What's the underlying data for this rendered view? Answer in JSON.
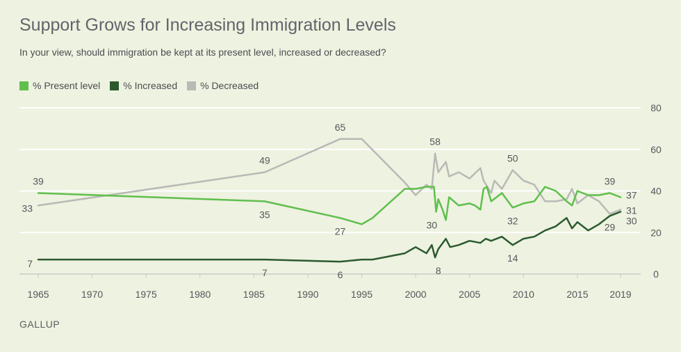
{
  "header": {
    "title": "Support Grows for Increasing Immigration Levels",
    "subtitle": "In your view, should immigration be kept at its present level, increased or decreased?"
  },
  "source": "GALLUP",
  "colors": {
    "background": "#eef2e0",
    "present": "#5fbf4d",
    "increased": "#2b5a2f",
    "decreased": "#b9b9b6",
    "grid": "#ffffff"
  },
  "chart_data": {
    "type": "line",
    "title": "Support Grows for Increasing Immigration Levels",
    "subtitle": "In your view, should immigration be kept at its present level, increased or decreased?",
    "xlabel": "",
    "ylabel": "",
    "xlim": [
      1965,
      2019
    ],
    "ylim": [
      0,
      80
    ],
    "x_ticks": [
      1965,
      1970,
      1975,
      1980,
      1985,
      1990,
      1995,
      2000,
      2005,
      2010,
      2015,
      2019
    ],
    "y_ticks": [
      0,
      20,
      40,
      60,
      80
    ],
    "grid": true,
    "legend_position": "top-left",
    "series": [
      {
        "name": "% Present level",
        "color": "#5fbf4d",
        "points": [
          [
            1965,
            39
          ],
          [
            1986,
            35
          ],
          [
            1993,
            27
          ],
          [
            1995,
            24
          ],
          [
            1996,
            27
          ],
          [
            1999,
            41
          ],
          [
            2000,
            41
          ],
          [
            2001,
            42
          ],
          [
            2001.7,
            42
          ],
          [
            2001.9,
            30
          ],
          [
            2002.1,
            36
          ],
          [
            2002.5,
            31
          ],
          [
            2002.8,
            26
          ],
          [
            2003.1,
            37
          ],
          [
            2004,
            33
          ],
          [
            2005,
            34
          ],
          [
            2005.5,
            33
          ],
          [
            2006,
            31
          ],
          [
            2006.3,
            41
          ],
          [
            2006.6,
            42
          ],
          [
            2007,
            35
          ],
          [
            2008,
            39
          ],
          [
            2009,
            32
          ],
          [
            2010,
            34
          ],
          [
            2011,
            35
          ],
          [
            2012,
            42
          ],
          [
            2013,
            40
          ],
          [
            2014,
            35
          ],
          [
            2014.5,
            33
          ],
          [
            2015,
            40
          ],
          [
            2016,
            38
          ],
          [
            2017,
            38
          ],
          [
            2018,
            39
          ],
          [
            2019,
            37
          ]
        ]
      },
      {
        "name": "% Increased",
        "color": "#2b5a2f",
        "points": [
          [
            1965,
            7
          ],
          [
            1986,
            7
          ],
          [
            1993,
            6
          ],
          [
            1995,
            7
          ],
          [
            1996,
            7
          ],
          [
            1999,
            10
          ],
          [
            2000,
            13
          ],
          [
            2001,
            10
          ],
          [
            2001.5,
            14
          ],
          [
            2001.8,
            8
          ],
          [
            2002.1,
            12
          ],
          [
            2002.8,
            17
          ],
          [
            2003.2,
            13
          ],
          [
            2004,
            14
          ],
          [
            2005,
            16
          ],
          [
            2006,
            15
          ],
          [
            2006.5,
            17
          ],
          [
            2007,
            16
          ],
          [
            2008,
            18
          ],
          [
            2009,
            14
          ],
          [
            2010,
            17
          ],
          [
            2011,
            18
          ],
          [
            2012,
            21
          ],
          [
            2013,
            23
          ],
          [
            2014,
            27
          ],
          [
            2014.5,
            22
          ],
          [
            2015,
            25
          ],
          [
            2016,
            21
          ],
          [
            2017,
            24
          ],
          [
            2018,
            28
          ],
          [
            2019,
            30
          ]
        ]
      },
      {
        "name": "% Decreased",
        "color": "#b9b9b6",
        "points": [
          [
            1965,
            33
          ],
          [
            1986,
            49
          ],
          [
            1993,
            65
          ],
          [
            1995,
            65
          ],
          [
            1999,
            44
          ],
          [
            2000,
            38
          ],
          [
            2001,
            43
          ],
          [
            2001.5,
            41
          ],
          [
            2001.8,
            58
          ],
          [
            2002.1,
            49
          ],
          [
            2002.8,
            54
          ],
          [
            2003.1,
            47
          ],
          [
            2004,
            49
          ],
          [
            2005,
            46
          ],
          [
            2006,
            51
          ],
          [
            2006.3,
            45
          ],
          [
            2007,
            39
          ],
          [
            2007.3,
            45
          ],
          [
            2008,
            41
          ],
          [
            2009,
            50
          ],
          [
            2010,
            45
          ],
          [
            2011,
            43
          ],
          [
            2012,
            35
          ],
          [
            2013,
            35
          ],
          [
            2014,
            36
          ],
          [
            2014.5,
            41
          ],
          [
            2015,
            34
          ],
          [
            2016,
            38
          ],
          [
            2017,
            35
          ],
          [
            2018,
            29
          ],
          [
            2019,
            31
          ]
        ]
      }
    ],
    "annotations": [
      {
        "text": "39",
        "series": 0,
        "x": 1965,
        "y": 39,
        "pos": "above"
      },
      {
        "text": "33",
        "series": 2,
        "x": 1965,
        "y": 33,
        "pos": "left"
      },
      {
        "text": "7",
        "series": 1,
        "x": 1965,
        "y": 7,
        "pos": "left"
      },
      {
        "text": "49",
        "series": 2,
        "x": 1986,
        "y": 49,
        "pos": "above"
      },
      {
        "text": "35",
        "series": 0,
        "x": 1986,
        "y": 35,
        "pos": "below"
      },
      {
        "text": "7",
        "series": 1,
        "x": 1986,
        "y": 7,
        "pos": "below"
      },
      {
        "text": "65",
        "series": 2,
        "x": 1993,
        "y": 65,
        "pos": "above"
      },
      {
        "text": "27",
        "series": 0,
        "x": 1993,
        "y": 27,
        "pos": "below"
      },
      {
        "text": "6",
        "series": 1,
        "x": 1993,
        "y": 6,
        "pos": "below"
      },
      {
        "text": "58",
        "series": 2,
        "x": 2001.8,
        "y": 58,
        "pos": "above"
      },
      {
        "text": "30",
        "series": 0,
        "x": 2001.5,
        "y": 30,
        "pos": "below"
      },
      {
        "text": "8",
        "series": 1,
        "x": 2002.1,
        "y": 8,
        "pos": "below"
      },
      {
        "text": "50",
        "series": 2,
        "x": 2009,
        "y": 50,
        "pos": "above"
      },
      {
        "text": "32",
        "series": 0,
        "x": 2009,
        "y": 32,
        "pos": "below"
      },
      {
        "text": "14",
        "series": 1,
        "x": 2009,
        "y": 14,
        "pos": "below"
      },
      {
        "text": "39",
        "series": 0,
        "x": 2018,
        "y": 39,
        "pos": "above"
      },
      {
        "text": "37",
        "series": 0,
        "x": 2019,
        "y": 37,
        "pos": "right"
      },
      {
        "text": "31",
        "series": 2,
        "x": 2019,
        "y": 31,
        "pos": "right"
      },
      {
        "text": "30",
        "series": 1,
        "x": 2019,
        "y": 30,
        "pos": "right"
      },
      {
        "text": "29",
        "series": 2,
        "x": 2018,
        "y": 29,
        "pos": "below"
      }
    ]
  }
}
